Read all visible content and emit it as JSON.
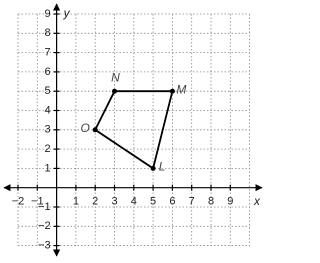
{
  "chart_data": {
    "type": "polygon",
    "x_label": "x",
    "y_label": "y",
    "x": [
      5,
      6,
      3,
      2
    ],
    "values": [
      1,
      5,
      5,
      3
    ],
    "point_labels": [
      "L",
      "M",
      "N",
      "O"
    ],
    "color": "#000000",
    "xlim": [
      -2,
      10
    ],
    "ylim": [
      -3,
      9
    ],
    "xticks": [
      {
        "value": -2,
        "label": "−2"
      },
      {
        "value": -1,
        "label": "−1"
      },
      1,
      2,
      3,
      4,
      5,
      6,
      7,
      8,
      9
    ],
    "yticks": [
      {
        "value": -3,
        "label": "−3"
      },
      {
        "value": -2,
        "label": "−2"
      },
      {
        "value": -1,
        "label": "−1"
      },
      1,
      2,
      3,
      4,
      5,
      6,
      7,
      8,
      9
    ],
    "grid": true
  }
}
